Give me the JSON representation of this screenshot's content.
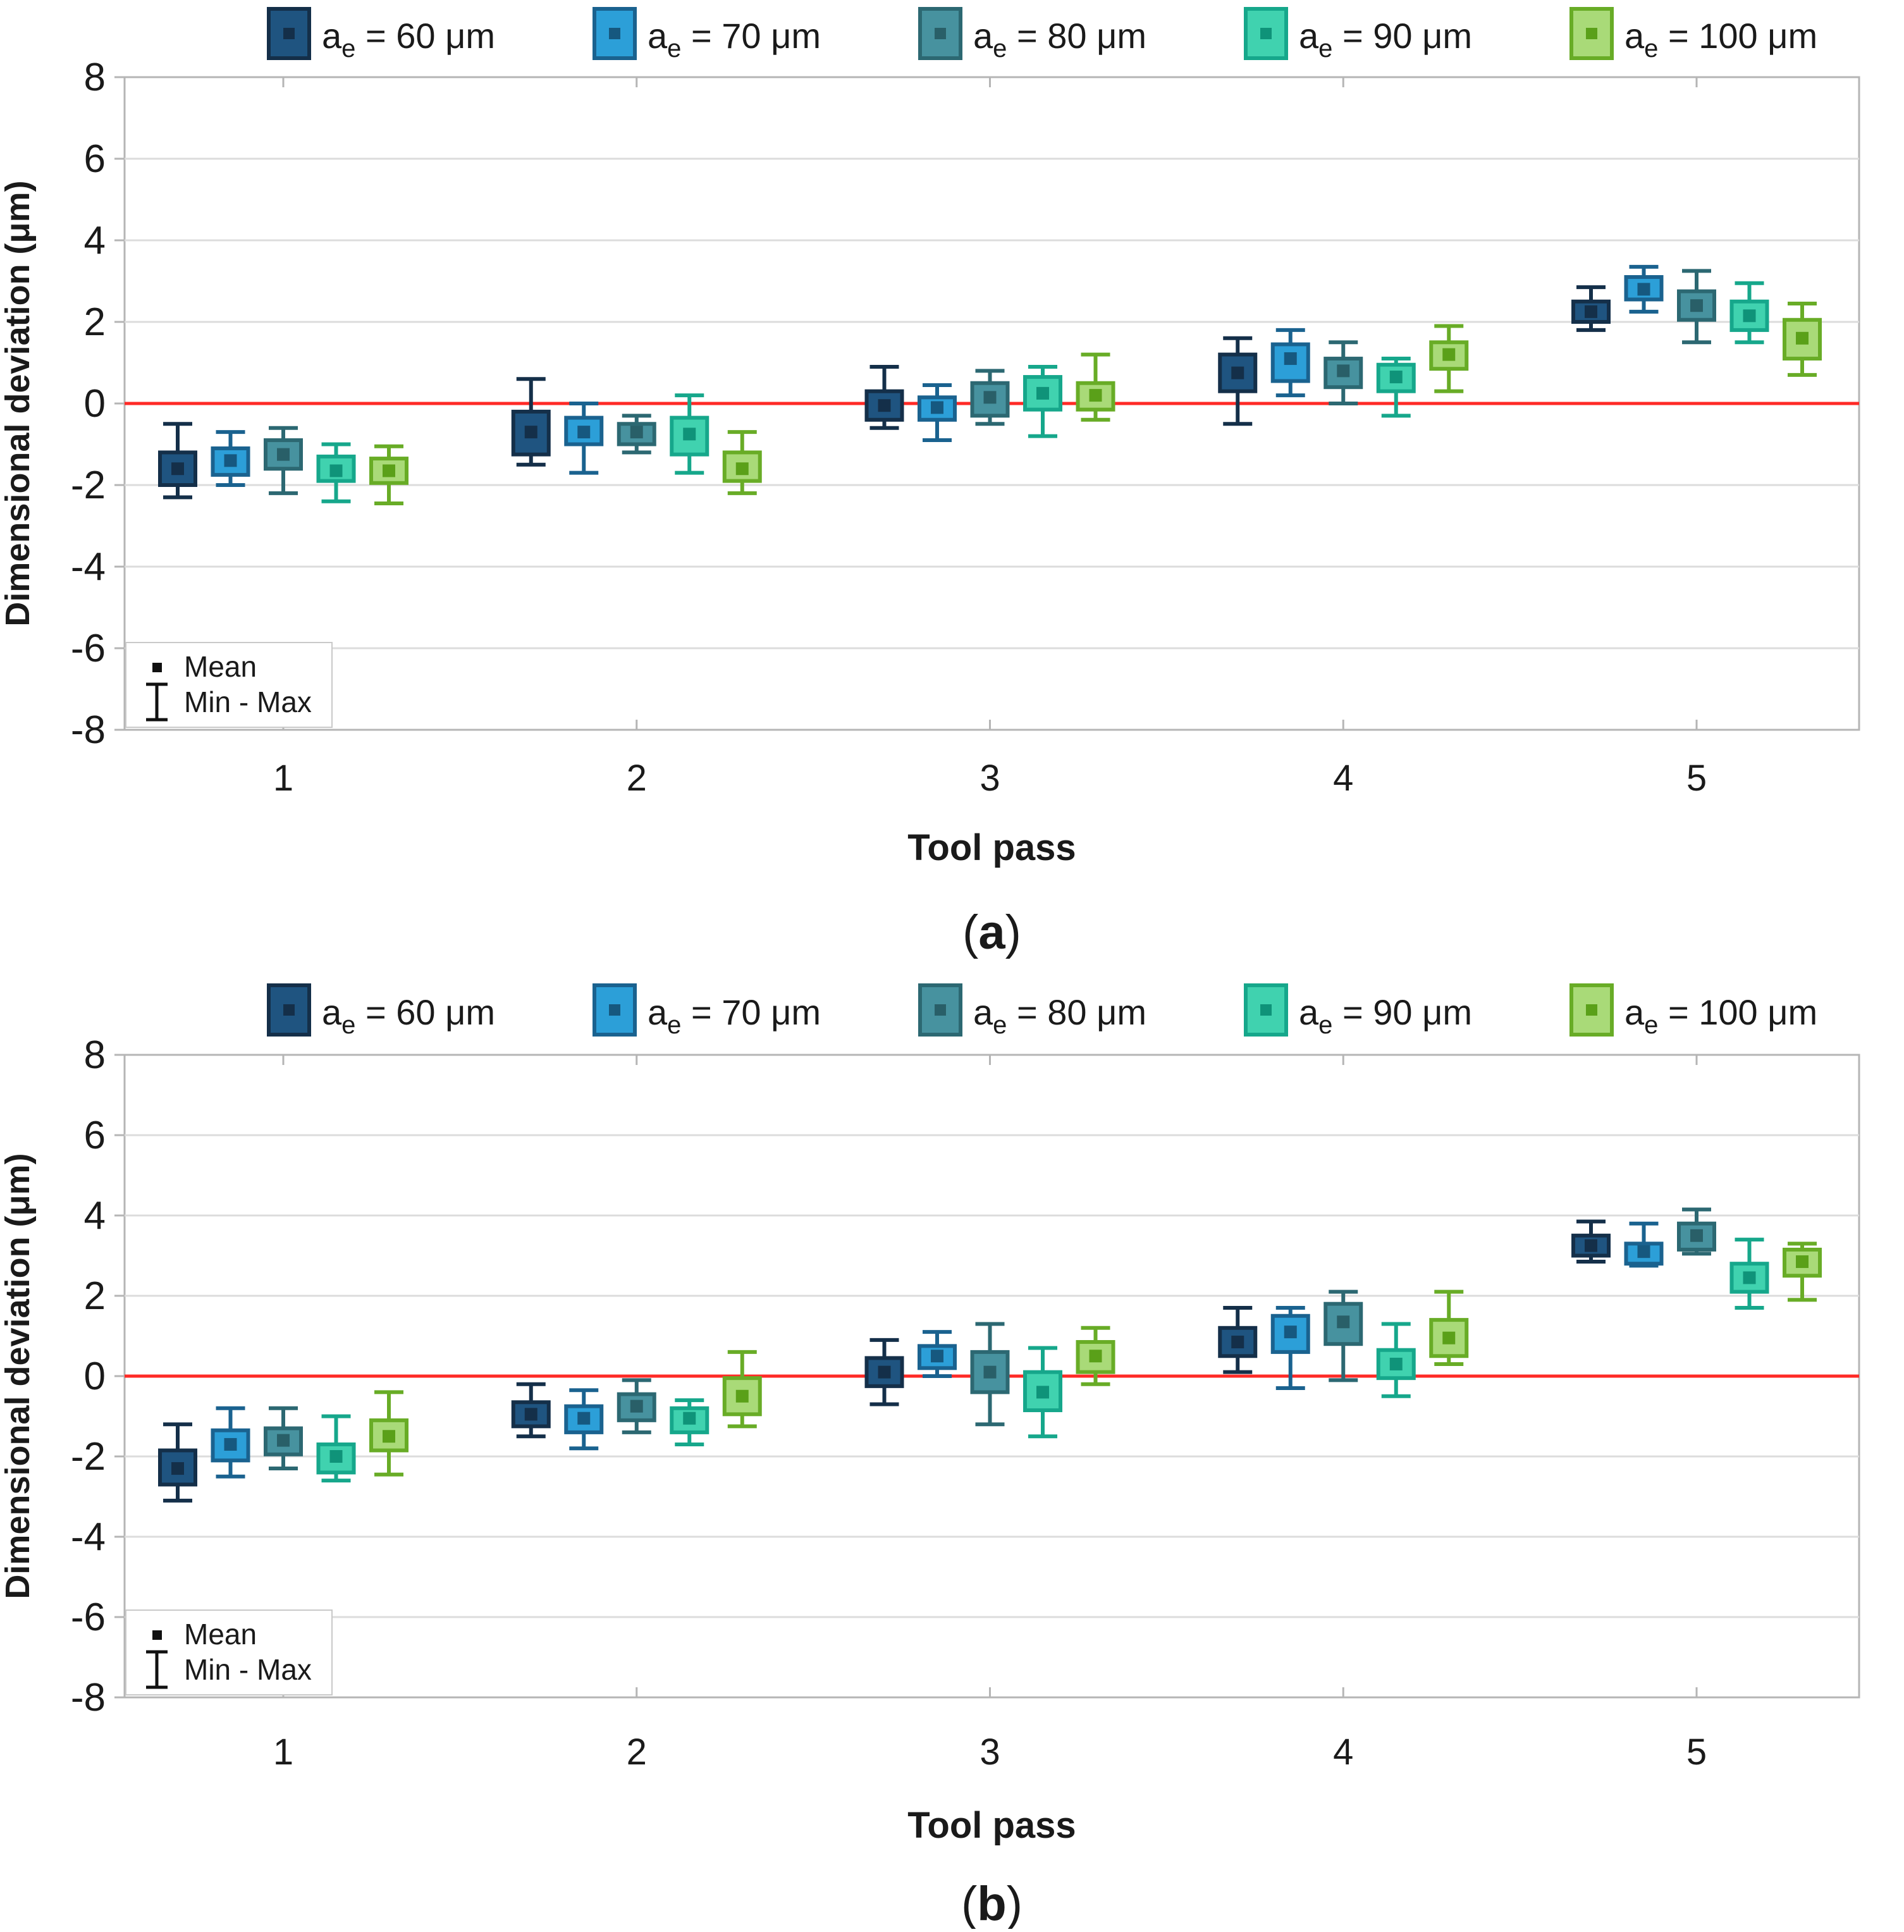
{
  "figure": {
    "zero_line_color": "#FF2A26",
    "frame_color": "#b5b5b5",
    "grid_color": "#dcdcdc",
    "inner_legend": {
      "mean_label": "Mean",
      "minmax_label": "Min - Max"
    }
  },
  "chart_data": [
    {
      "id": "a",
      "caption": "(a)",
      "type": "box-whisker-errorbar",
      "xlabel": "Tool pass",
      "ylabel": "Dimensional deviation (μm)",
      "categories": [
        1,
        2,
        3,
        4,
        5
      ],
      "ylim": [
        -8,
        8
      ],
      "ytick_step": 2,
      "reference_line_y": 0,
      "grid": true,
      "legend_position": "top",
      "series": [
        {
          "label_base": "a",
          "label_sub": "e",
          "label_suffix": " = 60 μm",
          "fill": "#1F5480",
          "edge": "#142F49",
          "mean_color": "#142F49",
          "mean": [
            -1.6,
            -0.7,
            -0.05,
            0.75,
            2.25
          ],
          "box_low": [
            -2.0,
            -1.25,
            -0.4,
            0.3,
            2.0
          ],
          "box_high": [
            -1.2,
            -0.2,
            0.3,
            1.2,
            2.5
          ],
          "min": [
            -2.3,
            -1.5,
            -0.6,
            -0.5,
            1.8
          ],
          "max": [
            -0.5,
            0.6,
            0.9,
            1.6,
            2.85
          ]
        },
        {
          "label_base": "a",
          "label_sub": "e",
          "label_suffix": " = 70 μm",
          "fill": "#2C9FD8",
          "edge": "#1A628F",
          "mean_color": "#16587F",
          "mean": [
            -1.4,
            -0.7,
            -0.1,
            1.1,
            2.8
          ],
          "box_low": [
            -1.75,
            -1.0,
            -0.4,
            0.55,
            2.55
          ],
          "box_high": [
            -1.1,
            -0.35,
            0.15,
            1.45,
            3.1
          ],
          "min": [
            -2.0,
            -1.7,
            -0.9,
            0.2,
            2.25
          ],
          "max": [
            -0.7,
            0.0,
            0.45,
            1.8,
            3.35
          ]
        },
        {
          "label_base": "a",
          "label_sub": "e",
          "label_suffix": " = 80 μm",
          "fill": "#47929F",
          "edge": "#2C6872",
          "mean_color": "#295F68",
          "mean": [
            -1.25,
            -0.7,
            0.15,
            0.8,
            2.4
          ],
          "box_low": [
            -1.6,
            -1.0,
            -0.3,
            0.4,
            2.05
          ],
          "box_high": [
            -0.9,
            -0.5,
            0.5,
            1.1,
            2.75
          ],
          "min": [
            -2.2,
            -1.2,
            -0.5,
            0.0,
            1.5
          ],
          "max": [
            -0.6,
            -0.3,
            0.8,
            1.5,
            3.25
          ]
        },
        {
          "label_base": "a",
          "label_sub": "e",
          "label_suffix": " = 90 μm",
          "fill": "#40D2AF",
          "edge": "#16A78B",
          "mean_color": "#0F9379",
          "mean": [
            -1.65,
            -0.75,
            0.25,
            0.65,
            2.15
          ],
          "box_low": [
            -1.9,
            -1.25,
            -0.15,
            0.3,
            1.8
          ],
          "box_high": [
            -1.3,
            -0.35,
            0.65,
            0.95,
            2.5
          ],
          "min": [
            -2.4,
            -1.7,
            -0.8,
            -0.3,
            1.5
          ],
          "max": [
            -1.0,
            0.2,
            0.9,
            1.1,
            2.95
          ]
        },
        {
          "label_base": "a",
          "label_sub": "e",
          "label_suffix": " = 100 μm",
          "fill": "#A9DA78",
          "edge": "#68AC26",
          "mean_color": "#5AA019",
          "mean": [
            -1.65,
            -1.6,
            0.2,
            1.2,
            1.6
          ],
          "box_low": [
            -1.95,
            -1.9,
            -0.15,
            0.85,
            1.1
          ],
          "box_high": [
            -1.35,
            -1.2,
            0.5,
            1.5,
            2.05
          ],
          "min": [
            -2.45,
            -2.2,
            -0.4,
            0.3,
            0.7
          ],
          "max": [
            -1.05,
            -0.7,
            1.2,
            1.9,
            2.45
          ]
        }
      ]
    },
    {
      "id": "b",
      "caption": "(b)",
      "type": "box-whisker-errorbar",
      "xlabel": "Tool pass",
      "ylabel": "Dimensional deviation (μm)",
      "categories": [
        1,
        2,
        3,
        4,
        5
      ],
      "ylim": [
        -8,
        8
      ],
      "ytick_step": 2,
      "reference_line_y": 0,
      "grid": true,
      "legend_position": "top",
      "series": [
        {
          "label_base": "a",
          "label_sub": "e",
          "label_suffix": " = 60 μm",
          "fill": "#1F5480",
          "edge": "#142F49",
          "mean_color": "#142F49",
          "mean": [
            -2.3,
            -0.95,
            0.1,
            0.85,
            3.25
          ],
          "box_low": [
            -2.7,
            -1.25,
            -0.25,
            0.5,
            3.0
          ],
          "box_high": [
            -1.85,
            -0.65,
            0.45,
            1.2,
            3.5
          ],
          "min": [
            -3.1,
            -1.5,
            -0.7,
            0.1,
            2.85
          ],
          "max": [
            -1.2,
            -0.2,
            0.9,
            1.7,
            3.85
          ]
        },
        {
          "label_base": "a",
          "label_sub": "e",
          "label_suffix": " = 70 μm",
          "fill": "#2C9FD8",
          "edge": "#1A628F",
          "mean_color": "#16587F",
          "mean": [
            -1.7,
            -1.05,
            0.5,
            1.1,
            3.1
          ],
          "box_low": [
            -2.1,
            -1.4,
            0.2,
            0.6,
            2.8
          ],
          "box_high": [
            -1.35,
            -0.75,
            0.75,
            1.5,
            3.3
          ],
          "min": [
            -2.5,
            -1.8,
            0.0,
            -0.3,
            2.75
          ],
          "max": [
            -0.8,
            -0.35,
            1.1,
            1.7,
            3.8
          ]
        },
        {
          "label_base": "a",
          "label_sub": "e",
          "label_suffix": " = 80 μm",
          "fill": "#47929F",
          "edge": "#2C6872",
          "mean_color": "#295F68",
          "mean": [
            -1.6,
            -0.75,
            0.1,
            1.35,
            3.5
          ],
          "box_low": [
            -1.95,
            -1.1,
            -0.4,
            0.8,
            3.15
          ],
          "box_high": [
            -1.3,
            -0.45,
            0.6,
            1.8,
            3.8
          ],
          "min": [
            -2.3,
            -1.4,
            -1.2,
            -0.1,
            3.05
          ],
          "max": [
            -0.8,
            -0.1,
            1.3,
            2.1,
            4.15
          ]
        },
        {
          "label_base": "a",
          "label_sub": "e",
          "label_suffix": " = 90 μm",
          "fill": "#40D2AF",
          "edge": "#16A78B",
          "mean_color": "#0F9379",
          "mean": [
            -2.0,
            -1.05,
            -0.4,
            0.3,
            2.45
          ],
          "box_low": [
            -2.4,
            -1.4,
            -0.85,
            -0.05,
            2.1
          ],
          "box_high": [
            -1.7,
            -0.8,
            0.1,
            0.65,
            2.8
          ],
          "min": [
            -2.6,
            -1.7,
            -1.5,
            -0.5,
            1.7
          ],
          "max": [
            -1.0,
            -0.6,
            0.7,
            1.3,
            3.4
          ]
        },
        {
          "label_base": "a",
          "label_sub": "e",
          "label_suffix": " = 100 μm",
          "fill": "#A9DA78",
          "edge": "#68AC26",
          "mean_color": "#5AA019",
          "mean": [
            -1.5,
            -0.5,
            0.5,
            0.95,
            2.85
          ],
          "box_low": [
            -1.85,
            -0.95,
            0.1,
            0.5,
            2.5
          ],
          "box_high": [
            -1.1,
            -0.05,
            0.85,
            1.4,
            3.15
          ],
          "min": [
            -2.45,
            -1.25,
            -0.2,
            0.3,
            1.9
          ],
          "max": [
            -0.4,
            0.6,
            1.2,
            2.1,
            3.3
          ]
        }
      ]
    }
  ]
}
